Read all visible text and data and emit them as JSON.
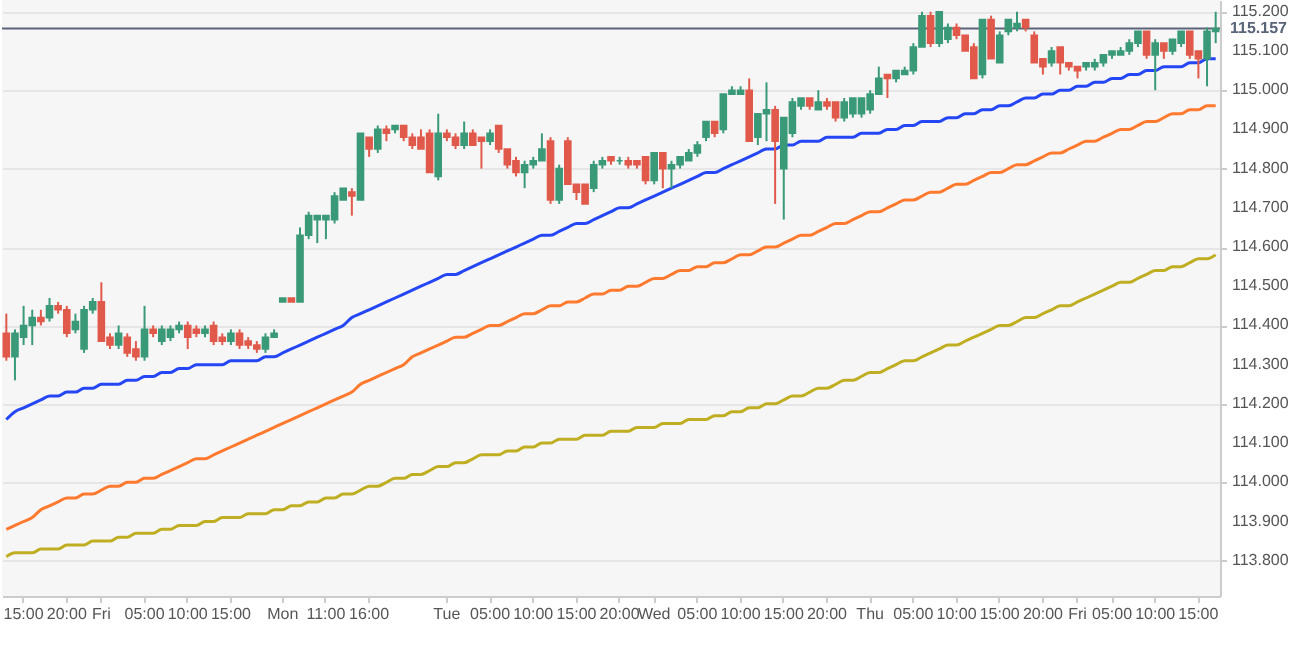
{
  "chart_data": {
    "type": "candlestick",
    "categories": [
      null,
      null,
      "15:00",
      null,
      null,
      null,
      null,
      "20:00",
      null,
      null,
      null,
      "Fri",
      null,
      null,
      null,
      null,
      "05:00",
      null,
      null,
      null,
      null,
      "10:00",
      null,
      null,
      null,
      null,
      "15:00",
      null,
      null,
      null,
      null,
      null,
      "Mon",
      null,
      null,
      null,
      null,
      "11:00",
      null,
      null,
      null,
      null,
      "16:00",
      null,
      null,
      null,
      null,
      null,
      null,
      null,
      null,
      "Tue",
      null,
      null,
      null,
      null,
      "05:00",
      null,
      null,
      null,
      null,
      "10:00",
      null,
      null,
      null,
      null,
      "15:00",
      null,
      null,
      null,
      null,
      "20:00",
      null,
      null,
      null,
      "Wed",
      null,
      null,
      null,
      null,
      "05:00",
      null,
      null,
      null,
      null,
      "10:00",
      null,
      null,
      null,
      null,
      "15:00",
      null,
      null,
      null,
      null,
      "20:00",
      null,
      null,
      null,
      null,
      "Thu",
      null,
      null,
      null,
      null,
      "05:00",
      null,
      null,
      null,
      null,
      "10:00",
      null,
      null,
      null,
      null,
      "15:00",
      null,
      null,
      null,
      null,
      "20:00",
      null,
      null,
      null,
      "Fri",
      null,
      null,
      null,
      "05:00",
      null,
      null,
      null,
      null,
      "10:00",
      null,
      null,
      null,
      null,
      "15:00",
      null,
      null
    ],
    "ohlc": [
      [
        114.38,
        114.43,
        114.31,
        114.32
      ],
      [
        114.32,
        114.39,
        114.26,
        114.38
      ],
      [
        114.37,
        114.45,
        114.35,
        114.4
      ],
      [
        114.4,
        114.44,
        114.35,
        114.42
      ],
      [
        114.42,
        114.44,
        114.4,
        114.41
      ],
      [
        114.42,
        114.47,
        114.41,
        114.45
      ],
      [
        114.45,
        114.46,
        114.43,
        114.44
      ],
      [
        114.44,
        114.45,
        114.37,
        114.38
      ],
      [
        114.39,
        114.43,
        114.38,
        114.41
      ],
      [
        114.34,
        114.45,
        114.33,
        114.44
      ],
      [
        114.44,
        114.47,
        114.43,
        114.46
      ],
      [
        114.46,
        114.51,
        114.36,
        114.36
      ],
      [
        114.37,
        114.38,
        114.34,
        114.35
      ],
      [
        114.35,
        114.4,
        114.34,
        114.38
      ],
      [
        114.37,
        114.38,
        114.32,
        114.33
      ],
      [
        114.34,
        114.36,
        114.31,
        114.32
      ],
      [
        114.32,
        114.45,
        114.31,
        114.39
      ],
      [
        114.39,
        114.4,
        114.37,
        114.38
      ],
      [
        114.36,
        114.4,
        114.35,
        114.39
      ],
      [
        114.37,
        114.4,
        114.36,
        114.39
      ],
      [
        114.39,
        114.41,
        114.38,
        114.4
      ],
      [
        114.4,
        114.41,
        114.34,
        114.37
      ],
      [
        114.39,
        114.4,
        114.37,
        114.38
      ],
      [
        114.38,
        114.4,
        114.37,
        114.39
      ],
      [
        114.4,
        114.41,
        114.35,
        114.36
      ],
      [
        114.37,
        114.38,
        114.35,
        114.36
      ],
      [
        114.36,
        114.39,
        114.35,
        114.38
      ],
      [
        114.38,
        114.39,
        114.34,
        114.35
      ],
      [
        114.36,
        114.37,
        114.34,
        114.35
      ],
      [
        114.35,
        114.36,
        114.33,
        114.34
      ],
      [
        114.34,
        114.38,
        114.33,
        114.37
      ],
      [
        114.37,
        114.39,
        114.37,
        114.38
      ],
      [
        114.46,
        114.47,
        114.46,
        114.47
      ],
      [
        114.47,
        114.47,
        114.46,
        114.46
      ],
      [
        114.46,
        114.65,
        114.46,
        114.63
      ],
      [
        114.63,
        114.69,
        114.62,
        114.68
      ],
      [
        114.67,
        114.68,
        114.61,
        114.68
      ],
      [
        114.67,
        114.68,
        114.62,
        114.68
      ],
      [
        114.67,
        114.74,
        114.66,
        114.73
      ],
      [
        114.72,
        114.75,
        114.72,
        114.75
      ],
      [
        114.74,
        114.75,
        114.68,
        114.73
      ],
      [
        114.72,
        114.89,
        114.72,
        114.89
      ],
      [
        114.88,
        114.88,
        114.83,
        114.85
      ],
      [
        114.85,
        114.91,
        114.84,
        114.9
      ],
      [
        114.9,
        114.91,
        114.87,
        114.89
      ],
      [
        114.9,
        114.91,
        114.89,
        114.91
      ],
      [
        114.91,
        114.91,
        114.87,
        114.88
      ],
      [
        114.88,
        114.89,
        114.85,
        114.86
      ],
      [
        114.88,
        114.9,
        114.85,
        114.85
      ],
      [
        114.89,
        114.9,
        114.79,
        114.79
      ],
      [
        114.78,
        114.94,
        114.77,
        114.89
      ],
      [
        114.89,
        114.9,
        114.87,
        114.88
      ],
      [
        114.88,
        114.89,
        114.85,
        114.86
      ],
      [
        114.86,
        114.92,
        114.85,
        114.89
      ],
      [
        114.89,
        114.9,
        114.86,
        114.86
      ],
      [
        114.88,
        114.88,
        114.8,
        114.87
      ],
      [
        114.87,
        114.9,
        114.86,
        114.89
      ],
      [
        114.91,
        114.91,
        114.84,
        114.85
      ],
      [
        114.85,
        114.85,
        114.8,
        114.81
      ],
      [
        114.82,
        114.83,
        114.78,
        114.79
      ],
      [
        114.79,
        114.82,
        114.75,
        114.81
      ],
      [
        114.81,
        114.83,
        114.8,
        114.82
      ],
      [
        114.82,
        114.89,
        114.82,
        114.85
      ],
      [
        114.87,
        114.88,
        114.71,
        114.72
      ],
      [
        114.72,
        114.81,
        114.71,
        114.8
      ],
      [
        114.87,
        114.88,
        114.76,
        114.76
      ],
      [
        114.76,
        114.76,
        114.72,
        114.74
      ],
      [
        114.76,
        114.76,
        114.71,
        114.71
      ],
      [
        114.75,
        114.82,
        114.74,
        114.81
      ],
      [
        114.81,
        114.83,
        114.8,
        114.82
      ],
      [
        114.83,
        114.83,
        114.81,
        114.82
      ],
      [
        114.82,
        114.83,
        114.81,
        114.82
      ],
      [
        114.82,
        114.83,
        114.8,
        114.81
      ],
      [
        114.82,
        114.82,
        114.8,
        114.81
      ],
      [
        114.83,
        114.83,
        114.76,
        114.77
      ],
      [
        114.77,
        114.84,
        114.76,
        114.84
      ],
      [
        114.84,
        114.84,
        114.75,
        114.8
      ],
      [
        114.8,
        114.82,
        114.75,
        114.81
      ],
      [
        114.81,
        114.83,
        114.8,
        114.83
      ],
      [
        114.82,
        114.85,
        114.82,
        114.84
      ],
      [
        114.84,
        114.87,
        114.83,
        114.86
      ],
      [
        114.88,
        114.92,
        114.87,
        114.92
      ],
      [
        114.92,
        114.92,
        114.88,
        114.89
      ],
      [
        114.9,
        114.99,
        114.89,
        114.99
      ],
      [
        114.99,
        115.01,
        114.99,
        115.0
      ],
      [
        114.99,
        115.01,
        114.99,
        115.0
      ],
      [
        115.0,
        115.03,
        114.87,
        114.87
      ],
      [
        114.88,
        114.94,
        114.86,
        114.94
      ],
      [
        114.94,
        115.02,
        114.87,
        114.95
      ],
      [
        114.95,
        114.96,
        114.71,
        114.87
      ],
      [
        114.8,
        114.93,
        114.67,
        114.93
      ],
      [
        114.89,
        114.98,
        114.88,
        114.97
      ],
      [
        114.96,
        114.98,
        114.95,
        114.98
      ],
      [
        114.98,
        114.98,
        114.95,
        114.96
      ],
      [
        114.95,
        115.0,
        114.95,
        114.97
      ],
      [
        114.97,
        114.98,
        114.95,
        114.96
      ],
      [
        114.97,
        114.97,
        114.92,
        114.93
      ],
      [
        114.93,
        114.98,
        114.92,
        114.97
      ],
      [
        114.94,
        114.98,
        114.93,
        114.98
      ],
      [
        114.94,
        114.98,
        114.93,
        114.98
      ],
      [
        114.95,
        115.0,
        114.94,
        114.99
      ],
      [
        114.99,
        115.06,
        114.99,
        115.03
      ],
      [
        115.04,
        115.04,
        114.98,
        115.03
      ],
      [
        115.03,
        115.05,
        115.02,
        115.05
      ],
      [
        115.04,
        115.06,
        115.04,
        115.05
      ],
      [
        115.05,
        115.12,
        115.04,
        115.11
      ],
      [
        115.11,
        115.2,
        115.11,
        115.19
      ],
      [
        115.19,
        115.2,
        115.11,
        115.12
      ],
      [
        115.12,
        115.2,
        115.11,
        115.2
      ],
      [
        115.13,
        115.17,
        115.12,
        115.16
      ],
      [
        115.16,
        115.17,
        115.13,
        115.14
      ],
      [
        115.14,
        115.14,
        115.1,
        115.1
      ],
      [
        115.11,
        115.12,
        115.03,
        115.03
      ],
      [
        115.04,
        115.18,
        115.03,
        115.18
      ],
      [
        115.18,
        115.19,
        115.08,
        115.08
      ],
      [
        115.07,
        115.15,
        115.07,
        115.14
      ],
      [
        115.15,
        115.18,
        115.14,
        115.18
      ],
      [
        115.16,
        115.2,
        115.15,
        115.17
      ],
      [
        115.18,
        115.18,
        115.15,
        115.16
      ],
      [
        115.14,
        115.15,
        115.07,
        115.07
      ],
      [
        115.08,
        115.08,
        115.04,
        115.06
      ],
      [
        115.07,
        115.11,
        115.06,
        115.1
      ],
      [
        115.11,
        115.11,
        115.04,
        115.07
      ],
      [
        115.07,
        115.07,
        115.05,
        115.06
      ],
      [
        115.06,
        115.06,
        115.03,
        115.05
      ],
      [
        115.06,
        115.07,
        115.05,
        115.07
      ],
      [
        115.06,
        115.08,
        115.05,
        115.07
      ],
      [
        115.07,
        115.09,
        115.06,
        115.09
      ],
      [
        115.09,
        115.1,
        115.08,
        115.1
      ],
      [
        115.09,
        115.11,
        115.09,
        115.1
      ],
      [
        115.1,
        115.13,
        115.09,
        115.12
      ],
      [
        115.12,
        115.15,
        115.11,
        115.15
      ],
      [
        115.15,
        115.15,
        115.08,
        115.09
      ],
      [
        115.09,
        115.13,
        115.0,
        115.12
      ],
      [
        115.12,
        115.12,
        115.08,
        115.1
      ],
      [
        115.1,
        115.13,
        115.09,
        115.13
      ],
      [
        115.12,
        115.15,
        115.11,
        115.15
      ],
      [
        115.15,
        115.15,
        115.08,
        115.09
      ],
      [
        115.1,
        115.1,
        115.03,
        115.08
      ],
      [
        115.08,
        115.16,
        115.01,
        115.15
      ],
      [
        115.15,
        115.2,
        115.12,
        115.157
      ]
    ],
    "series": [
      {
        "type": "line",
        "color": "#2446f5",
        "values": [
          114.16,
          114.18,
          114.19,
          114.2,
          114.21,
          114.22,
          114.22,
          114.23,
          114.23,
          114.24,
          114.24,
          114.25,
          114.25,
          114.25,
          114.26,
          114.26,
          114.27,
          114.27,
          114.28,
          114.28,
          114.29,
          114.29,
          114.3,
          114.3,
          114.3,
          114.3,
          114.31,
          114.31,
          114.31,
          114.31,
          114.32,
          114.32,
          114.33,
          114.34,
          114.35,
          114.36,
          114.37,
          114.38,
          114.39,
          114.4,
          114.42,
          114.43,
          114.44,
          114.45,
          114.46,
          114.47,
          114.48,
          114.49,
          114.5,
          114.51,
          114.52,
          114.53,
          114.53,
          114.54,
          114.55,
          114.56,
          114.57,
          114.58,
          114.59,
          114.6,
          114.61,
          114.62,
          114.63,
          114.63,
          114.64,
          114.65,
          114.66,
          114.66,
          114.67,
          114.68,
          114.69,
          114.7,
          114.7,
          114.71,
          114.72,
          114.73,
          114.74,
          114.75,
          114.76,
          114.77,
          114.78,
          114.79,
          114.79,
          114.8,
          114.81,
          114.82,
          114.83,
          114.84,
          114.85,
          114.85,
          114.86,
          114.86,
          114.87,
          114.87,
          114.87,
          114.88,
          114.88,
          114.88,
          114.88,
          114.89,
          114.89,
          114.89,
          114.9,
          114.9,
          114.91,
          114.91,
          114.92,
          114.92,
          114.92,
          114.93,
          114.93,
          114.94,
          114.94,
          114.95,
          114.95,
          114.96,
          114.96,
          114.97,
          114.98,
          114.98,
          114.99,
          114.99,
          115.0,
          115.0,
          115.01,
          115.01,
          115.02,
          115.02,
          115.03,
          115.03,
          115.04,
          115.04,
          115.05,
          115.05,
          115.06,
          115.06,
          115.06,
          115.07,
          115.07,
          115.08,
          115.08
        ]
      },
      {
        "type": "line",
        "color": "#ff7a2f",
        "values": [
          113.88,
          113.89,
          113.9,
          113.91,
          113.93,
          113.94,
          113.95,
          113.96,
          113.96,
          113.97,
          113.97,
          113.98,
          113.99,
          113.99,
          114.0,
          114.0,
          114.01,
          114.01,
          114.02,
          114.03,
          114.04,
          114.05,
          114.06,
          114.06,
          114.07,
          114.08,
          114.09,
          114.1,
          114.11,
          114.12,
          114.13,
          114.14,
          114.15,
          114.16,
          114.17,
          114.18,
          114.19,
          114.2,
          114.21,
          114.22,
          114.23,
          114.25,
          114.26,
          114.27,
          114.28,
          114.29,
          114.3,
          114.32,
          114.33,
          114.34,
          114.35,
          114.36,
          114.37,
          114.37,
          114.38,
          114.39,
          114.4,
          114.4,
          114.41,
          114.42,
          114.43,
          114.43,
          114.44,
          114.45,
          114.45,
          114.46,
          114.46,
          114.47,
          114.48,
          114.48,
          114.49,
          114.49,
          114.5,
          114.5,
          114.51,
          114.52,
          114.52,
          114.53,
          114.54,
          114.54,
          114.55,
          114.55,
          114.56,
          114.56,
          114.57,
          114.58,
          114.58,
          114.59,
          114.6,
          114.6,
          114.61,
          114.62,
          114.63,
          114.63,
          114.64,
          114.65,
          114.66,
          114.66,
          114.67,
          114.68,
          114.69,
          114.69,
          114.7,
          114.71,
          114.72,
          114.72,
          114.73,
          114.74,
          114.74,
          114.75,
          114.76,
          114.76,
          114.77,
          114.78,
          114.79,
          114.79,
          114.8,
          114.81,
          114.81,
          114.82,
          114.83,
          114.84,
          114.84,
          114.85,
          114.86,
          114.87,
          114.87,
          114.88,
          114.89,
          114.9,
          114.9,
          114.91,
          114.92,
          114.92,
          114.93,
          114.94,
          114.94,
          114.95,
          114.95,
          114.96,
          114.96
        ]
      },
      {
        "type": "line",
        "color": "#bfae22",
        "values": [
          113.81,
          113.82,
          113.82,
          113.82,
          113.83,
          113.83,
          113.83,
          113.84,
          113.84,
          113.84,
          113.85,
          113.85,
          113.85,
          113.86,
          113.86,
          113.87,
          113.87,
          113.87,
          113.88,
          113.88,
          113.89,
          113.89,
          113.89,
          113.9,
          113.9,
          113.91,
          113.91,
          113.91,
          113.92,
          113.92,
          113.92,
          113.93,
          113.93,
          113.94,
          113.94,
          113.95,
          113.95,
          113.96,
          113.96,
          113.97,
          113.97,
          113.98,
          113.99,
          113.99,
          114.0,
          114.01,
          114.01,
          114.02,
          114.02,
          114.03,
          114.04,
          114.04,
          114.05,
          114.05,
          114.06,
          114.07,
          114.07,
          114.07,
          114.08,
          114.08,
          114.09,
          114.09,
          114.1,
          114.1,
          114.11,
          114.11,
          114.11,
          114.12,
          114.12,
          114.12,
          114.13,
          114.13,
          114.13,
          114.14,
          114.14,
          114.14,
          114.15,
          114.15,
          114.15,
          114.16,
          114.16,
          114.16,
          114.17,
          114.17,
          114.18,
          114.18,
          114.19,
          114.19,
          114.2,
          114.2,
          114.21,
          114.22,
          114.22,
          114.23,
          114.24,
          114.24,
          114.25,
          114.26,
          114.26,
          114.27,
          114.28,
          114.28,
          114.29,
          114.3,
          114.31,
          114.31,
          114.32,
          114.33,
          114.34,
          114.35,
          114.35,
          114.36,
          114.37,
          114.38,
          114.39,
          114.4,
          114.4,
          114.41,
          114.42,
          114.42,
          114.43,
          114.44,
          114.45,
          114.45,
          114.46,
          114.47,
          114.48,
          114.49,
          114.5,
          114.51,
          114.51,
          114.52,
          114.53,
          114.54,
          114.54,
          114.55,
          114.55,
          114.56,
          114.57,
          114.57,
          114.58
        ]
      }
    ],
    "ylim": [
      113.71,
      115.23
    ],
    "yticks": [
      {
        "value": 113.8,
        "label": "113.800"
      },
      {
        "value": 113.9,
        "label": "113.900"
      },
      {
        "value": 114,
        "label": "114.000"
      },
      {
        "value": 114.1,
        "label": "114.100"
      },
      {
        "value": 114.2,
        "label": "114.200"
      },
      {
        "value": 114.3,
        "label": "114.300"
      },
      {
        "value": 114.4,
        "label": "114.400"
      },
      {
        "value": 114.5,
        "label": "114.500"
      },
      {
        "value": 114.6,
        "label": "114.600"
      },
      {
        "value": 114.7,
        "label": "114.700"
      },
      {
        "value": 114.8,
        "label": "114.800"
      },
      {
        "value": 114.9,
        "label": "114.900"
      },
      {
        "value": 115,
        "label": "115.000"
      },
      {
        "value": 115.1,
        "label": "115.100"
      },
      {
        "value": 115.2,
        "label": "115.200"
      }
    ],
    "ref_lines": [
      {
        "axis": "y",
        "value": 115.157,
        "label": "115.157",
        "color": "#5a6478"
      }
    ],
    "grid": "y"
  }
}
